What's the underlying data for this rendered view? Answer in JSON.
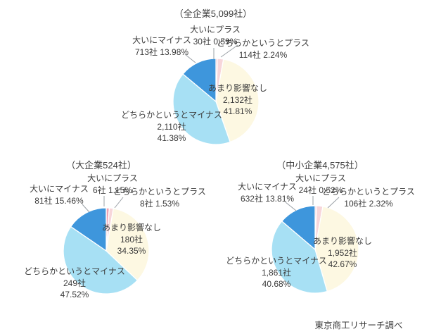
{
  "page": {
    "background_color": "#ffffff",
    "text_color": "#3b3b3b"
  },
  "footer": {
    "source": "東京商工リサーチ調べ"
  },
  "palette": {
    "strong_plus": "#f0a2b4",
    "rather_plus": "#f7d6da",
    "no_effect": "#fdf8e2",
    "rather_minus": "#a7e0f4",
    "strong_minus": "#3e96dc",
    "leader_line": "#9aa0a6"
  },
  "chart_data": [
    {
      "type": "pie",
      "title": "（全企業5,099社）",
      "total_companies": 5099,
      "legend_position": "none",
      "slices": [
        {
          "label": "大いにプラス",
          "count": 30,
          "count_text": "30社",
          "percent": 0.59,
          "percent_text": "0.59%",
          "color": "#f0a2b4"
        },
        {
          "label": "どちらかというとプラス",
          "count": 114,
          "count_text": "114社",
          "percent": 2.24,
          "percent_text": "2.24%",
          "color": "#f7d6da"
        },
        {
          "label": "あまり影響なし",
          "count": 2132,
          "count_text": "2,132社",
          "percent": 41.81,
          "percent_text": "41.81%",
          "color": "#fdf8e2"
        },
        {
          "label": "どちらかというとマイナス",
          "count": 2110,
          "count_text": "2,110社",
          "percent": 41.38,
          "percent_text": "41.38%",
          "color": "#a7e0f4"
        },
        {
          "label": "大いにマイナス",
          "count": 713,
          "count_text": "713社",
          "percent": 13.98,
          "percent_text": "13.98%",
          "color": "#3e96dc"
        }
      ]
    },
    {
      "type": "pie",
      "title": "（大企業524社）",
      "total_companies": 524,
      "legend_position": "none",
      "slices": [
        {
          "label": "大いにプラス",
          "count": 6,
          "count_text": "6社",
          "percent": 1.15,
          "percent_text": "1.15%",
          "color": "#f0a2b4"
        },
        {
          "label": "どちらかというとプラス",
          "count": 8,
          "count_text": "8社",
          "percent": 1.53,
          "percent_text": "1.53%",
          "color": "#f7d6da"
        },
        {
          "label": "あまり影響なし",
          "count": 180,
          "count_text": "180社",
          "percent": 34.35,
          "percent_text": "34.35%",
          "color": "#fdf8e2"
        },
        {
          "label": "どちらかというとマイナス",
          "count": 249,
          "count_text": "249社",
          "percent": 47.52,
          "percent_text": "47.52%",
          "color": "#a7e0f4"
        },
        {
          "label": "大いにマイナス",
          "count": 81,
          "count_text": "81社",
          "percent": 15.46,
          "percent_text": "15.46%",
          "color": "#3e96dc"
        }
      ]
    },
    {
      "type": "pie",
      "title": "（中小企業4,575社）",
      "total_companies": 4575,
      "legend_position": "none",
      "slices": [
        {
          "label": "大いにプラス",
          "count": 24,
          "count_text": "24社",
          "percent": 0.52,
          "percent_text": "0.52%",
          "color": "#f0a2b4"
        },
        {
          "label": "どちらかというとプラス",
          "count": 106,
          "count_text": "106社",
          "percent": 2.32,
          "percent_text": "2.32%",
          "color": "#f7d6da"
        },
        {
          "label": "あまり影響なし",
          "count": 1952,
          "count_text": "1,952社",
          "percent": 42.67,
          "percent_text": "42.67%",
          "color": "#fdf8e2"
        },
        {
          "label": "どちらかというとマイナス",
          "count": 1861,
          "count_text": "1,861社",
          "percent": 40.68,
          "percent_text": "40.68%",
          "color": "#a7e0f4"
        },
        {
          "label": "大いにマイナス",
          "count": 632,
          "count_text": "632社",
          "percent": 13.81,
          "percent_text": "13.81%",
          "color": "#3e96dc"
        }
      ]
    }
  ]
}
